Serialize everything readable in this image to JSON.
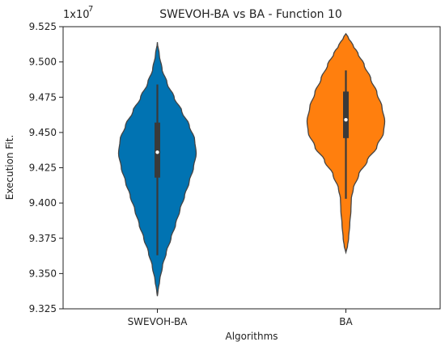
{
  "chart_data": {
    "type": "violin",
    "title": "SWEVOH-BA vs BA - Function 10",
    "xlabel": "Algorithms",
    "ylabel": "Execution Fit.",
    "y_multiplier": "1x10",
    "y_multiplier_exponent": "7",
    "ylim": [
      9.325,
      9.525
    ],
    "yticks": [
      "9.325",
      "9.350",
      "9.375",
      "9.400",
      "9.425",
      "9.450",
      "9.475",
      "9.500",
      "9.525"
    ],
    "categories": [
      "SWEVOH-BA",
      "BA"
    ],
    "series": [
      {
        "category": "SWEVOH-BA",
        "color": "#0173b2",
        "min": 9.363,
        "q1": 9.418,
        "median": 9.436,
        "q3": 9.457,
        "max": 9.484,
        "kde_low": 9.334,
        "kde_high": 9.514,
        "density_profile": [
          [
            9.334,
            0.0
          ],
          [
            9.338,
            0.02
          ],
          [
            9.345,
            0.06
          ],
          [
            9.355,
            0.13
          ],
          [
            9.365,
            0.23
          ],
          [
            9.375,
            0.35
          ],
          [
            9.385,
            0.47
          ],
          [
            9.395,
            0.58
          ],
          [
            9.405,
            0.7
          ],
          [
            9.415,
            0.82
          ],
          [
            9.425,
            0.93
          ],
          [
            9.435,
            1.0
          ],
          [
            9.445,
            0.96
          ],
          [
            9.455,
            0.82
          ],
          [
            9.465,
            0.63
          ],
          [
            9.475,
            0.43
          ],
          [
            9.485,
            0.25
          ],
          [
            9.495,
            0.12
          ],
          [
            9.505,
            0.05
          ],
          [
            9.514,
            0.0
          ]
        ]
      },
      {
        "category": "BA",
        "color": "#ff7f0e",
        "min": 9.403,
        "q1": 9.446,
        "median": 9.459,
        "q3": 9.479,
        "max": 9.494,
        "kde_low": 9.365,
        "kde_high": 9.52,
        "density_profile": [
          [
            9.365,
            0.0
          ],
          [
            9.369,
            0.04
          ],
          [
            9.375,
            0.07
          ],
          [
            9.385,
            0.1
          ],
          [
            9.395,
            0.13
          ],
          [
            9.403,
            0.14
          ],
          [
            9.41,
            0.19
          ],
          [
            9.42,
            0.33
          ],
          [
            9.43,
            0.55
          ],
          [
            9.44,
            0.8
          ],
          [
            9.45,
            0.97
          ],
          [
            9.458,
            1.0
          ],
          [
            9.468,
            0.93
          ],
          [
            9.478,
            0.8
          ],
          [
            9.488,
            0.64
          ],
          [
            9.498,
            0.47
          ],
          [
            9.506,
            0.31
          ],
          [
            9.512,
            0.18
          ],
          [
            9.517,
            0.07
          ],
          [
            9.52,
            0.0
          ]
        ]
      }
    ],
    "grid": false,
    "legend": "none"
  }
}
